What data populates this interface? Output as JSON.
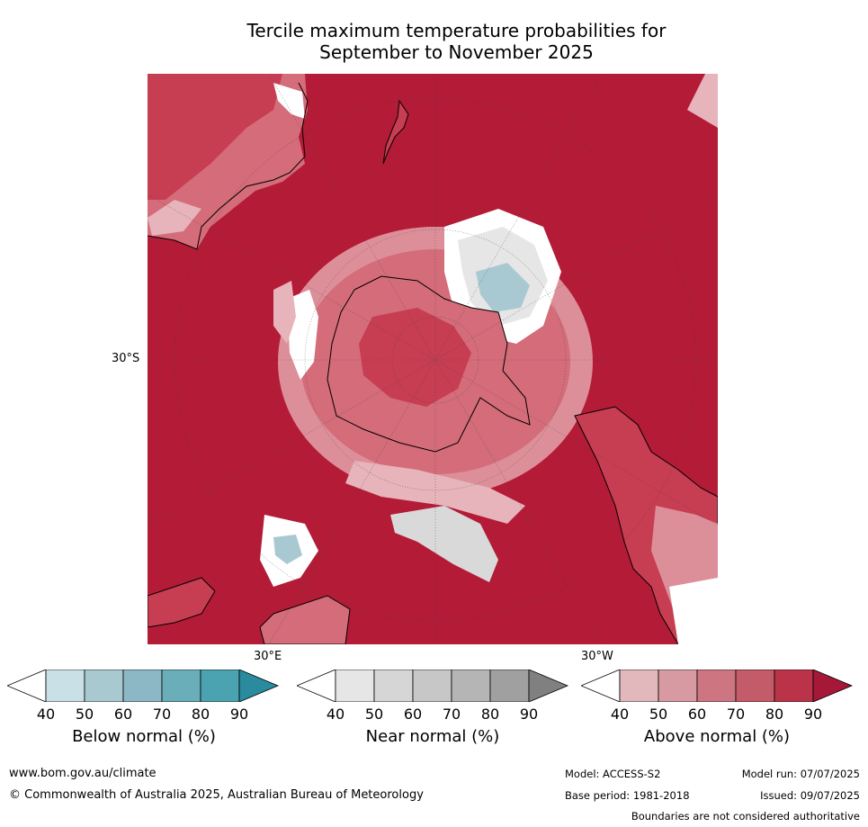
{
  "title": {
    "line1": "Tercile maximum temperature probabilities for",
    "line2": "September to November 2025"
  },
  "map": {
    "projection": "south-polar-stereographic",
    "lat_label": "30°S",
    "lon_label_east": "30°E",
    "lon_label_west": "30°W",
    "colors": {
      "ocean_above_90": "#b31b36",
      "above_80": "#c73d52",
      "above_70": "#d46c7a",
      "above_60": "#dd8f99",
      "above_50": "#e6b4ba",
      "near_normal": "#d9d9d9",
      "below_50": "#a9c9d2",
      "white": "#ffffff"
    }
  },
  "colorbars": [
    {
      "title": "Below normal (%)",
      "ticks": [
        "40",
        "50",
        "60",
        "70",
        "80",
        "90"
      ],
      "colors": [
        "#ffffff",
        "#c9e0e6",
        "#a9c9d1",
        "#8bb8c4",
        "#6aaeba",
        "#4ba2b0",
        "#2a8a9e"
      ]
    },
    {
      "title": "Near normal (%)",
      "ticks": [
        "40",
        "50",
        "60",
        "70",
        "80",
        "90"
      ],
      "colors": [
        "#ffffff",
        "#e6e6e6",
        "#d6d6d6",
        "#c7c7c7",
        "#b5b5b5",
        "#a0a0a0",
        "#808080"
      ]
    },
    {
      "title": "Above normal (%)",
      "ticks": [
        "40",
        "50",
        "60",
        "70",
        "80",
        "90"
      ],
      "colors": [
        "#ffffff",
        "#e2b8bd",
        "#d89aa2",
        "#cd7681",
        "#c45b69",
        "#bb3349",
        "#a51838"
      ]
    }
  ],
  "footer": {
    "url": "www.bom.gov.au/climate",
    "copyright": "© Commonwealth of Australia 2025, Australian Bureau of Meteorology",
    "model": "Model: ACCESS-S2",
    "model_run": "Model run: 07/07/2025",
    "base_period": "Base period: 1981-2018",
    "issued": "Issued: 09/07/2025",
    "disclaimer": "Boundaries are not considered authoritative"
  }
}
